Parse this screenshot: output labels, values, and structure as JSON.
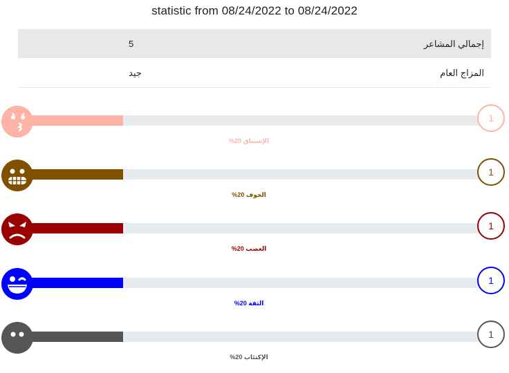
{
  "title": "statistic from 08/24/2022 to 08/24/2022",
  "summary": {
    "total_label": "إجمالي المشاعر",
    "total_value": "5",
    "mood_label": "المزاج العام",
    "mood_value": "جيد"
  },
  "emotions": [
    {
      "name": "الإشتياق",
      "percent_text": "20%",
      "percent": 20,
      "count": "1",
      "color": "#ffb3a7",
      "icon": "kissing-face-icon"
    },
    {
      "name": "الخوف",
      "percent_text": "20%",
      "percent": 20,
      "count": "1",
      "color": "#7f5000",
      "icon": "grimacing-face-icon"
    },
    {
      "name": "الغضب",
      "percent_text": "20%",
      "percent": 20,
      "count": "1",
      "color": "#990000",
      "icon": "angry-face-icon"
    },
    {
      "name": "الثقة",
      "percent_text": "20%",
      "percent": 20,
      "count": "1",
      "color": "#0000ff",
      "icon": "winking-face-icon"
    },
    {
      "name": "الإكتئاب",
      "percent_text": "20%",
      "percent": 20,
      "count": "1",
      "color": "#555555",
      "icon": "expressionless-face-icon"
    }
  ]
}
